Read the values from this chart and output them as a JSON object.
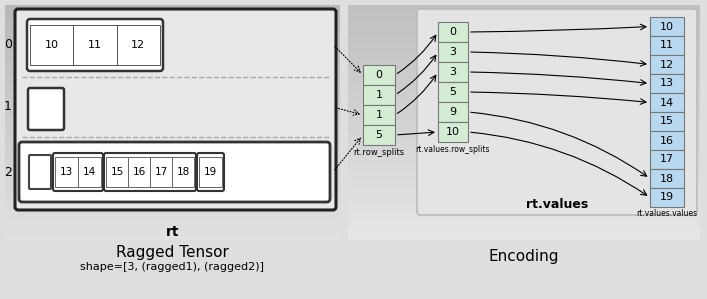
{
  "bg_color": "#dedede",
  "left_panel_bg_top": "#c8c8c8",
  "left_panel_bg_bot": "#e8e8e8",
  "right_panel_bg": "#d0d0d0",
  "inner_rt_bg": "#e8e8e8",
  "inner_rv_bg": "#e0e0e0",
  "cell_green_bg": "#d4ecd4",
  "cell_blue_bg": "#b8d8f0",
  "title_left": "Ragged Tensor",
  "title_right": "Encoding",
  "subtitle_left": "shape=[3, (ragged1), (ragged2)]",
  "rt_label": "rt",
  "rt_values_label": "rt.values",
  "row_splits_label": "rt.row_splits",
  "values_row_splits_label": "rt.values.row_splits",
  "values_values_label": "rt.values.values",
  "rt_row_splits": [
    0,
    1,
    1,
    5
  ],
  "rt_values_row_splits": [
    0,
    3,
    3,
    5,
    9,
    10
  ],
  "rt_values_values": [
    10,
    11,
    12,
    13,
    14,
    15,
    16,
    17,
    18,
    19
  ]
}
